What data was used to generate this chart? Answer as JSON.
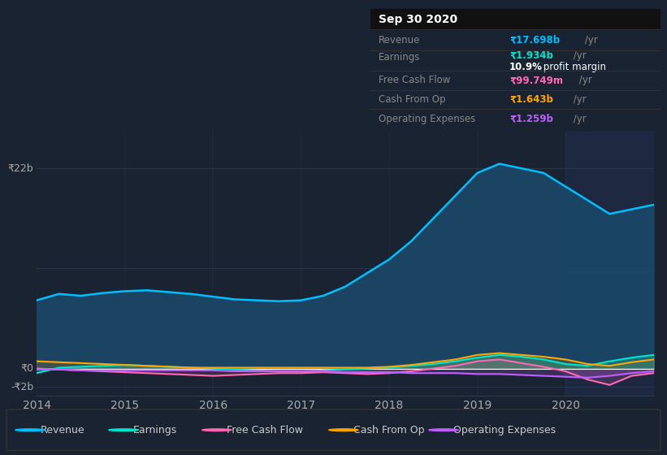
{
  "bg_color": "#1a2332",
  "plot_bg_color": "#1a2332",
  "grid_color": "#2a3a50",
  "years": [
    2014.0,
    2014.25,
    2014.5,
    2014.75,
    2015.0,
    2015.25,
    2015.5,
    2015.75,
    2016.0,
    2016.25,
    2016.5,
    2016.75,
    2017.0,
    2017.25,
    2017.5,
    2017.75,
    2018.0,
    2018.25,
    2018.5,
    2018.75,
    2019.0,
    2019.25,
    2019.5,
    2019.75,
    2020.0,
    2020.25,
    2020.5,
    2020.75,
    2021.0
  ],
  "revenue": [
    7.5,
    8.2,
    8.0,
    8.3,
    8.5,
    8.6,
    8.4,
    8.2,
    7.9,
    7.6,
    7.5,
    7.4,
    7.5,
    8.0,
    9.0,
    10.5,
    12.0,
    14.0,
    16.5,
    19.0,
    21.5,
    22.5,
    22.0,
    21.5,
    20.0,
    18.5,
    17.0,
    17.5,
    18.0
  ],
  "earnings": [
    -0.5,
    0.1,
    0.2,
    0.3,
    0.4,
    0.3,
    0.2,
    0.1,
    0.0,
    -0.1,
    -0.2,
    -0.3,
    -0.3,
    -0.2,
    -0.1,
    0.0,
    0.1,
    0.3,
    0.5,
    0.8,
    1.2,
    1.5,
    1.3,
    1.0,
    0.5,
    0.3,
    0.8,
    1.2,
    1.5
  ],
  "free_cash_flow": [
    0.0,
    -0.1,
    -0.2,
    -0.3,
    -0.4,
    -0.5,
    -0.6,
    -0.7,
    -0.8,
    -0.7,
    -0.6,
    -0.5,
    -0.5,
    -0.4,
    -0.5,
    -0.6,
    -0.5,
    -0.3,
    0.0,
    0.3,
    0.8,
    1.0,
    0.6,
    0.2,
    -0.3,
    -1.2,
    -1.8,
    -0.8,
    -0.5
  ],
  "cash_from_op": [
    0.8,
    0.7,
    0.6,
    0.5,
    0.4,
    0.3,
    0.2,
    0.1,
    0.1,
    0.1,
    0.1,
    0.1,
    0.1,
    0.1,
    0.1,
    0.1,
    0.2,
    0.4,
    0.7,
    1.0,
    1.5,
    1.7,
    1.5,
    1.3,
    1.0,
    0.5,
    0.3,
    0.7,
    1.0
  ],
  "operating_expenses": [
    -0.1,
    -0.1,
    -0.2,
    -0.2,
    -0.2,
    -0.2,
    -0.2,
    -0.2,
    -0.2,
    -0.3,
    -0.3,
    -0.3,
    -0.3,
    -0.3,
    -0.4,
    -0.4,
    -0.4,
    -0.5,
    -0.5,
    -0.5,
    -0.6,
    -0.6,
    -0.7,
    -0.8,
    -0.9,
    -1.0,
    -0.8,
    -0.5,
    -0.3
  ],
  "revenue_color": "#00bfff",
  "earnings_color": "#00e5cc",
  "free_cash_flow_color": "#ff69b4",
  "cash_from_op_color": "#ffa500",
  "operating_expenses_color": "#bf5fff",
  "revenue_fill": "#1a4a6a",
  "ylabel_22b": "₹22b",
  "ylabel_0": "₹0",
  "ylabel_neg2b": "-₹2b",
  "xlabel_ticks": [
    2014,
    2015,
    2016,
    2017,
    2018,
    2019,
    2020
  ],
  "ylim": [
    -3,
    26
  ],
  "legend_labels": [
    "Revenue",
    "Earnings",
    "Free Cash Flow",
    "Cash From Op",
    "Operating Expenses"
  ],
  "info_box": {
    "date": "Sep 30 2020",
    "revenue_val": "₹17.698b",
    "revenue_unit": " /yr",
    "earnings_val": "₹1.934b",
    "earnings_unit": " /yr",
    "profit_margin": "10.9%",
    "profit_margin_text": " profit margin",
    "fcf_val": "₹99.749m",
    "fcf_unit": " /yr",
    "cashop_val": "₹1.643b",
    "cashop_unit": " /yr",
    "opex_val": "₹1.259b",
    "opex_unit": " /yr"
  }
}
